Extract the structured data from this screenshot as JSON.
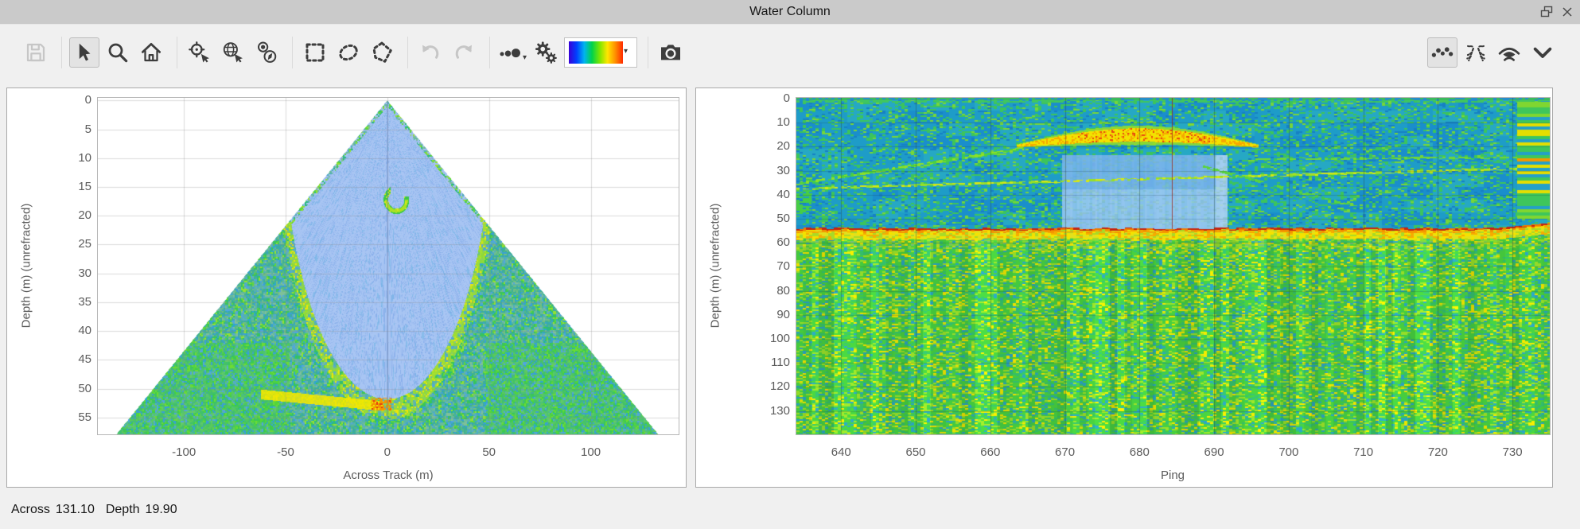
{
  "window": {
    "title": "Water Column",
    "float_button": "float",
    "close_button": "close"
  },
  "toolbar": {
    "tools": [
      {
        "name": "save",
        "icon": "save-icon",
        "enabled": false,
        "selected": false
      },
      {
        "name": "select",
        "icon": "cursor-icon",
        "enabled": true,
        "selected": true
      },
      {
        "name": "zoom",
        "icon": "magnifier-icon",
        "enabled": true,
        "selected": false
      },
      {
        "name": "home",
        "icon": "home-icon",
        "enabled": true,
        "selected": false
      },
      {
        "name": "zoom-to-point",
        "icon": "crosshair-cursor-icon",
        "enabled": true,
        "selected": false
      },
      {
        "name": "zoom-extents",
        "icon": "globe-cursor-icon",
        "enabled": true,
        "selected": false
      },
      {
        "name": "center-view",
        "icon": "target-compass-icon",
        "enabled": true,
        "selected": false
      },
      {
        "name": "rectangle-select",
        "icon": "dashed-rectangle-icon",
        "enabled": true,
        "selected": false
      },
      {
        "name": "ellipse-select",
        "icon": "dashed-ellipse-icon",
        "enabled": true,
        "selected": false
      },
      {
        "name": "polygon-select",
        "icon": "dashed-polygon-icon",
        "enabled": true,
        "selected": false
      },
      {
        "name": "undo",
        "icon": "undo-icon",
        "enabled": false,
        "selected": false
      },
      {
        "name": "redo",
        "icon": "redo-icon",
        "enabled": false,
        "selected": false
      },
      {
        "name": "point-size",
        "icon": "dots-icon",
        "enabled": true,
        "selected": false,
        "has_dropdown": true
      },
      {
        "name": "settings",
        "icon": "gears-icon",
        "enabled": true,
        "selected": false
      },
      {
        "name": "colormap",
        "icon": "colormap-swatch",
        "enabled": true,
        "has_dropdown": true,
        "gradient": [
          "#3a00d8",
          "#0040ff",
          "#00b4f0",
          "#00d24a",
          "#7ce600",
          "#ffe600",
          "#ff9000",
          "#ff2a00"
        ]
      },
      {
        "name": "snapshot",
        "icon": "camera-icon",
        "enabled": true,
        "selected": false
      }
    ],
    "view_modes": [
      {
        "name": "points-mode",
        "icon": "dots-arc-icon",
        "selected": true
      },
      {
        "name": "fan-mode",
        "icon": "fan-icon",
        "selected": false
      },
      {
        "name": "stacked-mode",
        "icon": "swath-eye-icon",
        "selected": false
      },
      {
        "name": "collapse",
        "icon": "chevron-down-icon",
        "selected": false
      }
    ]
  },
  "statusbar": {
    "across_label": "Across",
    "across_value": "131.10",
    "depth_label": "Depth",
    "depth_value": "19.90"
  },
  "chart_data": [
    {
      "type": "heatmap",
      "view": "fan",
      "xlabel": "Across Track (m)",
      "ylabel": "Depth (m) (unrefracted)",
      "x_range": [
        -142.3,
        143.2
      ],
      "y_range": [
        -0.45,
        57.9
      ],
      "x_ticks": [
        -100,
        -50,
        0,
        50,
        100
      ],
      "y_ticks": [
        0,
        5,
        10,
        15,
        20,
        25,
        30,
        35,
        40,
        45,
        50,
        55
      ],
      "grid": true,
      "colormap": "rainbow",
      "wedge_half_slope": 2.3,
      "first_return_range_m": 52.8,
      "seafloor_depth_m": 52.5,
      "target_echo": {
        "across_m": 4.5,
        "depth_m": 17.2,
        "half_width_m": 5.5,
        "half_height_m": 2.2
      },
      "bright_streak": {
        "from": [
          -62,
          51.0
        ],
        "to": [
          -2,
          53.0
        ]
      }
    },
    {
      "type": "heatmap",
      "view": "ping-stack",
      "xlabel": "Ping",
      "ylabel": "Depth (m) (unrefracted)",
      "x_range": [
        634.0,
        735.0
      ],
      "y_range": [
        -0.3,
        139.7
      ],
      "x_ticks": [
        640,
        650,
        660,
        670,
        680,
        690,
        700,
        710,
        720,
        730
      ],
      "y_ticks": [
        0,
        10,
        20,
        30,
        40,
        50,
        60,
        70,
        80,
        90,
        100,
        110,
        120,
        130
      ],
      "grid": true,
      "colormap": "rainbow",
      "seafloor_depth_m": 54.0,
      "cursor_ping": 684.3,
      "target_echo": {
        "ping_start": 663.5,
        "ping_end": 696.0,
        "depth_top": 12.0,
        "depth_bottom": 21.5
      },
      "selection_block": {
        "ping_start": 669.6,
        "ping_end": 691.8,
        "depth_start": 23.4,
        "depth_end": 54.0
      },
      "track_lines": [
        {
          "from": [
            634,
            35.5
          ],
          "to": [
            664,
            21.0
          ]
        },
        {
          "from": [
            634,
            37.5
          ],
          "to": [
            735,
            28.8
          ]
        },
        {
          "from": [
            688.5,
            28.3
          ],
          "to": [
            713,
            48.3
          ]
        },
        {
          "from": [
            695.5,
            25.2
          ],
          "to": [
            735,
            24.4
          ]
        }
      ]
    }
  ]
}
